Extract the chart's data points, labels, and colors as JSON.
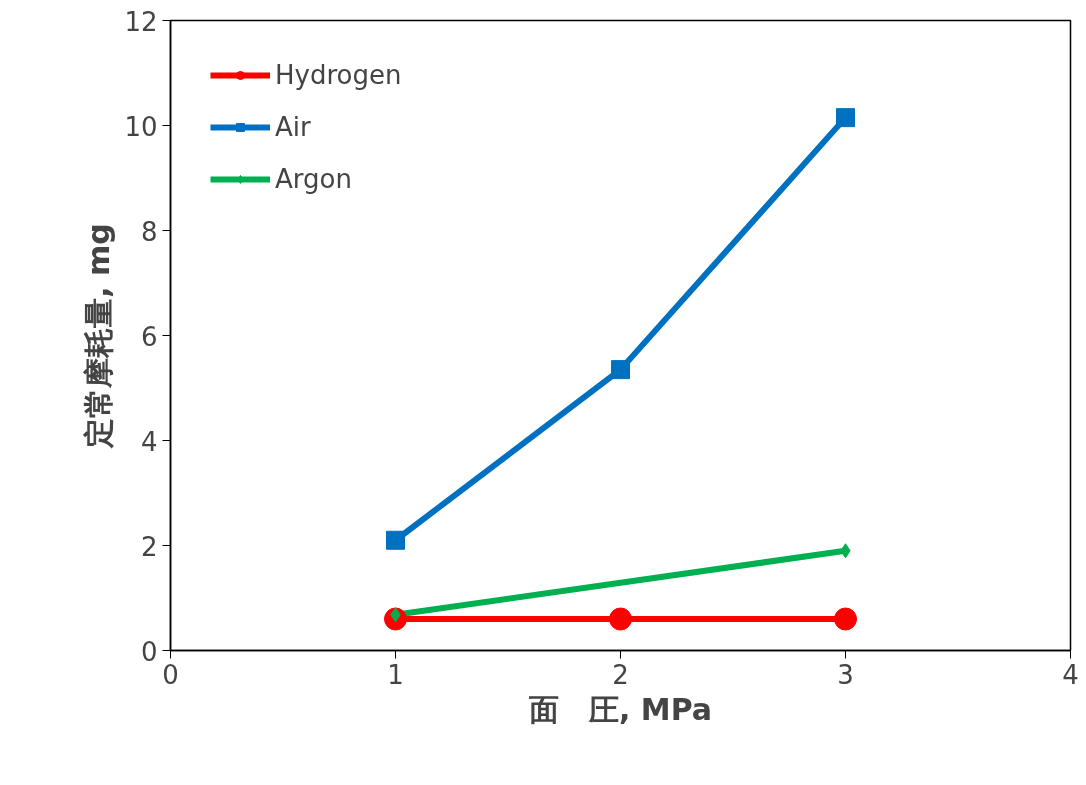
{
  "chart_data": {
    "type": "line",
    "xlabel": "面　圧, MPa",
    "ylabel": "定常摩耗量, mg",
    "x": [
      1,
      2,
      3
    ],
    "series": [
      {
        "name": "Hydrogen",
        "color": "#ff0000",
        "marker": "circle",
        "values": [
          0.6,
          0.6,
          0.6
        ]
      },
      {
        "name": "Air",
        "color": "#0070c0",
        "marker": "square",
        "values": [
          2.1,
          5.35,
          10.15
        ]
      },
      {
        "name": "Argon",
        "color": "#00b050",
        "marker": "diamond",
        "x": [
          1,
          3
        ],
        "values": [
          0.68,
          1.9
        ]
      }
    ],
    "xlim": [
      0,
      4
    ],
    "ylim": [
      0,
      12
    ],
    "xticks": [
      0,
      1,
      2,
      3,
      4
    ],
    "yticks": [
      0,
      2,
      4,
      6,
      8,
      10,
      12
    ],
    "grid": false,
    "legend": "top left",
    "line_style": "solid"
  }
}
